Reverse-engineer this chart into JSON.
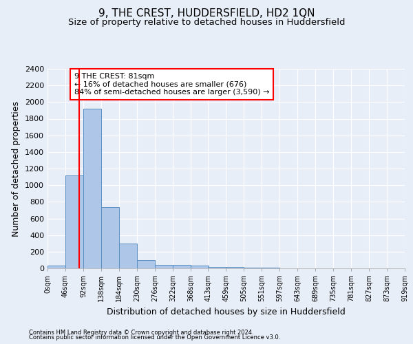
{
  "title": "9, THE CREST, HUDDERSFIELD, HD2 1QN",
  "subtitle": "Size of property relative to detached houses in Huddersfield",
  "xlabel": "Distribution of detached houses by size in Huddersfield",
  "ylabel": "Number of detached properties",
  "footer_line1": "Contains HM Land Registry data © Crown copyright and database right 2024.",
  "footer_line2": "Contains public sector information licensed under the Open Government Licence v3.0.",
  "bin_edges": [
    0,
    46,
    92,
    138,
    184,
    230,
    276,
    322,
    368,
    413,
    459,
    505,
    551,
    597,
    643,
    689,
    735,
    781,
    827,
    873,
    919
  ],
  "bar_heights": [
    35,
    1120,
    1920,
    740,
    295,
    100,
    45,
    38,
    32,
    18,
    20,
    12,
    5,
    3,
    2,
    2,
    1,
    1,
    1,
    1
  ],
  "bar_color": "#aec6e8",
  "bar_edge_color": "#5a8fc2",
  "vline_x": 81,
  "vline_color": "red",
  "annotation_text": "9 THE CREST: 81sqm\n← 16% of detached houses are smaller (676)\n84% of semi-detached houses are larger (3,590) →",
  "annotation_box_color": "white",
  "annotation_box_edge_color": "red",
  "ylim": [
    0,
    2400
  ],
  "yticks": [
    0,
    200,
    400,
    600,
    800,
    1000,
    1200,
    1400,
    1600,
    1800,
    2000,
    2200,
    2400
  ],
  "bg_color": "#e8eef8",
  "plot_bg_color": "#e8eef8",
  "grid_color": "white",
  "title_fontsize": 11,
  "subtitle_fontsize": 9.5,
  "ylabel_fontsize": 9,
  "xlabel_fontsize": 9,
  "ytick_fontsize": 8,
  "xtick_fontsize": 7
}
